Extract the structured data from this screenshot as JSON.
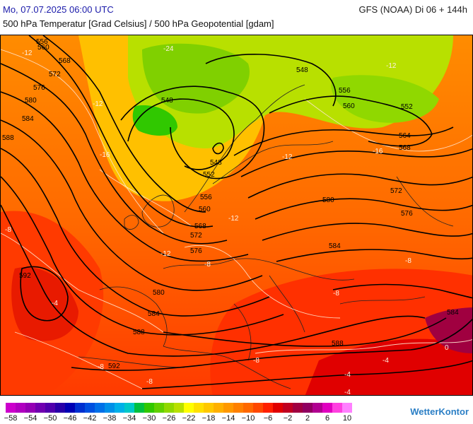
{
  "header": {
    "run_date": "Mo, 07.07.2025 06:00 UTC",
    "model_info": "GFS (NOAA) Di 06 + 144h",
    "subtitle": "500 hPa Temperatur [Grad Celsius] / 500 hPa Geopotential [gdam]"
  },
  "brand": "WetterKontor",
  "legend": {
    "colors": [
      "#cc00cc",
      "#b000c0",
      "#9400b4",
      "#7000b0",
      "#5000ac",
      "#2800a8",
      "#0000b4",
      "#0030d0",
      "#0050e0",
      "#0070e8",
      "#0090e8",
      "#00b0e8",
      "#00c8c8",
      "#00c040",
      "#30c800",
      "#60d000",
      "#90d800",
      "#b8e000",
      "#ffff00",
      "#ffe000",
      "#ffc800",
      "#ffb000",
      "#ff9800",
      "#ff8000",
      "#ff6800",
      "#ff4800",
      "#ff2000",
      "#e00000",
      "#c00020",
      "#a00040",
      "#900060",
      "#b00090",
      "#e000c0",
      "#ff40e0",
      "#ff80ff"
    ],
    "ticks": [
      "−58",
      "−54",
      "−50",
      "−46",
      "−42",
      "−38",
      "−34",
      "−30",
      "−26",
      "−22",
      "−18",
      "−14",
      "−10",
      "−6",
      "−2",
      "2",
      "6",
      "10"
    ]
  },
  "contour_labels": {
    "isohypses": [
      "556",
      "560",
      "568",
      "572",
      "576",
      "580",
      "584",
      "588",
      "548",
      "548",
      "556",
      "560",
      "552",
      "564",
      "568",
      "572",
      "576",
      "580",
      "584",
      "548",
      "552",
      "556",
      "560",
      "568",
      "572",
      "576",
      "580",
      "584",
      "592",
      "588",
      "592",
      "588",
      "584"
    ],
    "isotherms": [
      "-12",
      "-24",
      "-12",
      "-16",
      "-12",
      "-16",
      "-12",
      "-8",
      "-12",
      "-8",
      "-4",
      "-8",
      "-12",
      "-8",
      "-8",
      "-4",
      "-4",
      "-8",
      "-8",
      "-4",
      "0"
    ]
  }
}
